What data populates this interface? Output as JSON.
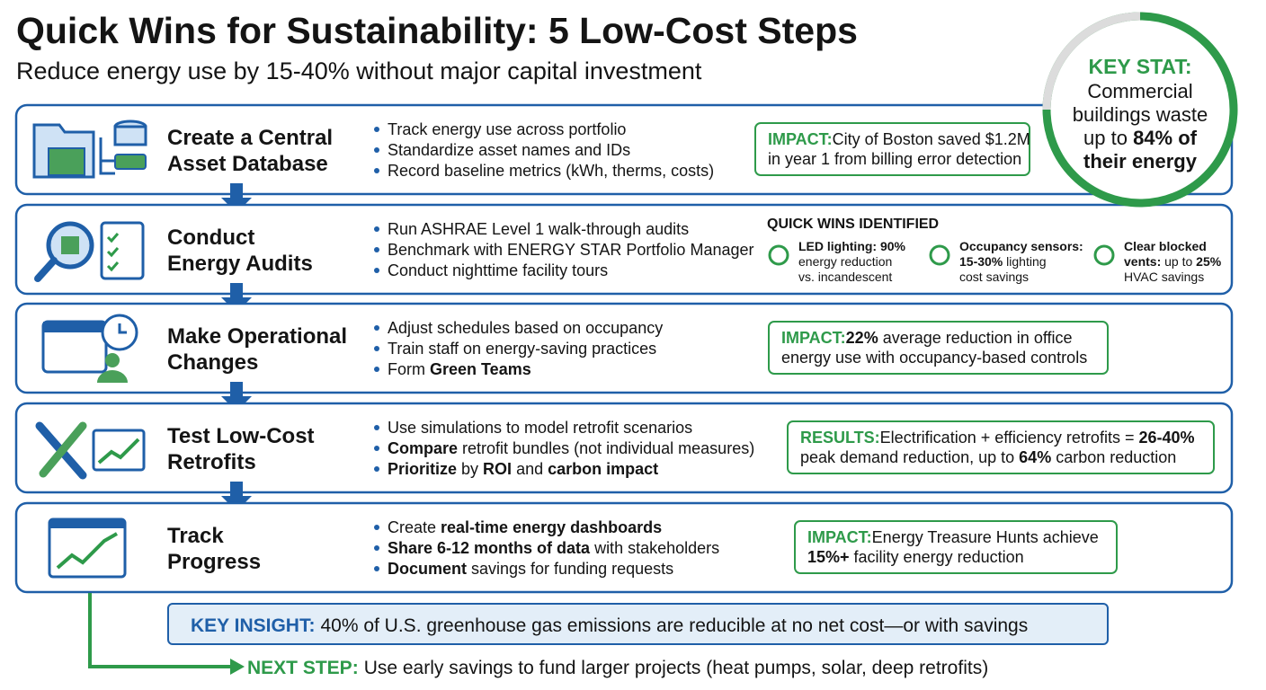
{
  "header": {
    "title": "Quick Wins for Sustainability: 5 Low-Cost Steps",
    "subtitle": "Reduce energy use by 15-40% without major capital investment"
  },
  "key_stat": {
    "label": "KEY STAT:",
    "lines": [
      [
        "Commercial"
      ],
      [
        "buildings waste"
      ],
      [
        "up to ",
        {
          "text": "84% of",
          "bold": true
        }
      ],
      [
        {
          "text": "their energy",
          "bold": true
        }
      ]
    ]
  },
  "steps": [
    {
      "title_lines": [
        "Create a Central",
        "Asset Database"
      ],
      "bullets": [
        [
          "Track energy use across portfolio"
        ],
        [
          "Standardize asset names and IDs"
        ],
        [
          "Record baseline metrics (kWh, therms, costs)"
        ]
      ],
      "callout": {
        "label": "IMPACT:",
        "lines": [
          [
            "City of Boston saved $1.2M"
          ],
          [
            "in year 1 from billing error detection"
          ]
        ]
      }
    },
    {
      "title_lines": [
        "Conduct",
        "Energy Audits"
      ],
      "bullets": [
        [
          "Run ASHRAE Level 1 walk-through audits"
        ],
        [
          "Benchmark with ENERGY STAR Portfolio Manager"
        ],
        [
          "Conduct nighttime facility tours"
        ]
      ],
      "quick_wins": {
        "heading": "QUICK WINS IDENTIFIED",
        "items": [
          {
            "lines": [
              [
                {
                  "text": "LED lighting: 90%",
                  "bold": true
                }
              ],
              [
                "energy reduction"
              ],
              [
                "vs. incandescent"
              ]
            ]
          },
          {
            "lines": [
              [
                {
                  "text": "Occupancy sensors:",
                  "bold": true
                }
              ],
              [
                {
                  "text": "15-30%",
                  "bold": true
                },
                " lighting"
              ],
              [
                "cost savings"
              ]
            ]
          },
          {
            "lines": [
              [
                {
                  "text": "Clear blocked",
                  "bold": true
                }
              ],
              [
                {
                  "text": "vents:",
                  "bold": true
                },
                " up to ",
                {
                  "text": "25%",
                  "bold": true
                }
              ],
              [
                "HVAC savings"
              ]
            ]
          }
        ]
      }
    },
    {
      "title_lines": [
        "Make Operational",
        "Changes"
      ],
      "bullets": [
        [
          "Adjust schedules based on occupancy"
        ],
        [
          "Train staff on energy-saving practices"
        ],
        [
          "Form ",
          {
            "text": "Green Teams",
            "bold": true
          }
        ]
      ],
      "callout": {
        "label": "IMPACT:",
        "lines": [
          [
            {
              "text": "22%",
              "bold": true
            },
            " average reduction in office"
          ],
          [
            "energy use with occupancy-based controls"
          ]
        ]
      }
    },
    {
      "title_lines": [
        "Test Low-Cost",
        "Retrofits"
      ],
      "bullets": [
        [
          "Use simulations to model retrofit scenarios"
        ],
        [
          {
            "text": "Compare",
            "bold": true
          },
          " retrofit bundles (not individual measures)"
        ],
        [
          {
            "text": "Prioritize",
            "bold": true
          },
          " by ",
          {
            "text": "ROI",
            "bold": true
          },
          " and ",
          {
            "text": "carbon impact",
            "bold": true
          }
        ]
      ],
      "callout": {
        "label": "RESULTS:",
        "lines": [
          [
            "Electrification + efficiency retrofits = ",
            {
              "text": "26-40%",
              "bold": true
            }
          ],
          [
            "peak demand reduction, up to ",
            {
              "text": "64%",
              "bold": true
            },
            " carbon reduction"
          ]
        ]
      }
    },
    {
      "title_lines": [
        "Track",
        "Progress"
      ],
      "bullets": [
        [
          "Create ",
          {
            "text": "real-time energy dashboards",
            "bold": true
          }
        ],
        [
          {
            "text": "Share 6-12 months of data",
            "bold": true
          },
          " with stakeholders"
        ],
        [
          {
            "text": "Document",
            "bold": true
          },
          " savings for funding requests"
        ]
      ],
      "callout": {
        "label": "IMPACT:",
        "lines": [
          [
            "Energy Treasure Hunts achieve"
          ],
          [
            {
              "text": "15%+",
              "bold": true
            },
            " facility energy reduction"
          ]
        ]
      }
    }
  ],
  "key_insight": {
    "label": "KEY INSIGHT:",
    "text": "40% of U.S. greenhouse gas emissions are reducible at no net cost—or with savings"
  },
  "next_step": {
    "label": "NEXT STEP:",
    "text": "Use early savings to fund larger projects (heat pumps, solar, deep retrofits)"
  }
}
